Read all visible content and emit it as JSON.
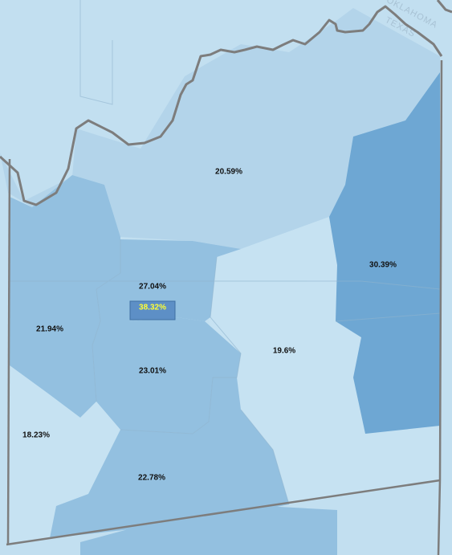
{
  "basemap": {
    "state_labels": [
      "OKLAHOMA",
      "TEXAS"
    ]
  },
  "colors": {
    "background": "#c2dff0",
    "lowest": "#c6e2f2",
    "low": "#b3d4ea",
    "mid": "#93c0e0",
    "high": "#6ea7d3",
    "highest": "#5d8fc6",
    "highlight_text": "#ffff33",
    "border": "#7d7d7d"
  },
  "regions": [
    {
      "id": "north",
      "value": "20.59%",
      "shade": "low"
    },
    {
      "id": "east",
      "value": "30.39%",
      "shade": "high"
    },
    {
      "id": "center-north",
      "value": "27.04%",
      "shade": "mid"
    },
    {
      "id": "center-tract",
      "value": "38.32%",
      "shade": "highest",
      "highlight": true
    },
    {
      "id": "west",
      "value": "21.94%",
      "shade": "mid"
    },
    {
      "id": "center",
      "value": "23.01%",
      "shade": "mid"
    },
    {
      "id": "center-east",
      "value": "19.6%",
      "shade": "lowest"
    },
    {
      "id": "southwest",
      "value": "18.23%",
      "shade": "lowest"
    },
    {
      "id": "south",
      "value": "22.78%",
      "shade": "mid"
    }
  ]
}
